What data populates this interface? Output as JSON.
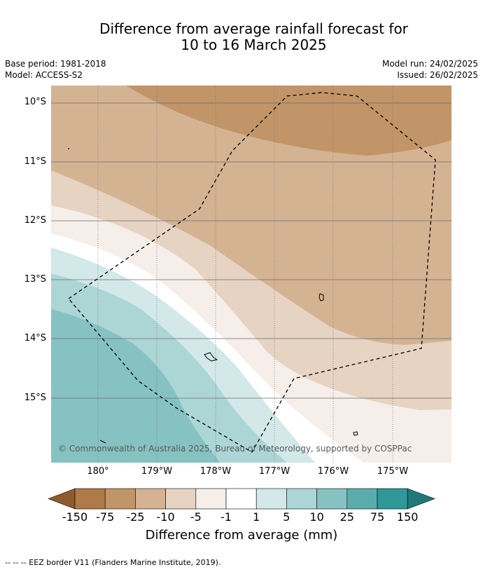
{
  "title_line1": "Difference from average rainfall forecast for",
  "title_line2": "10 to 16 March 2025",
  "base_period": "Base period: 1981-2018",
  "model": "Model: ACCESS-S2",
  "model_run": "Model run: 24/02/2025",
  "issued": "Issued: 26/02/2025",
  "lat_labels": [
    "10°S",
    "11°S",
    "12°S",
    "13°S",
    "14°S",
    "15°S"
  ],
  "lon_labels": [
    "180°",
    "179°W",
    "178°W",
    "177°W",
    "176°W",
    "175°W"
  ],
  "copyright": "© Commonwealth of Australia 2025, Bureau of Meteorology, supported by COSPPac",
  "legend": {
    "title": "Difference from average (mm)",
    "ticks": [
      "-150",
      "-75",
      "-25",
      "-10",
      "-5",
      "-1",
      "1",
      "5",
      "10",
      "25",
      "75",
      "150"
    ],
    "colors": [
      "#8e5a2e",
      "#ae7a47",
      "#c19568",
      "#d4b393",
      "#e6d3c2",
      "#f5eee9",
      "#ffffff",
      "#d3e8e8",
      "#acd6d6",
      "#86c2c2",
      "#5badad",
      "#2f9898",
      "#217878"
    ]
  },
  "footnote": "--  --  -- EEZ border V11 (Flanders Marine Institute, 2019)."
}
